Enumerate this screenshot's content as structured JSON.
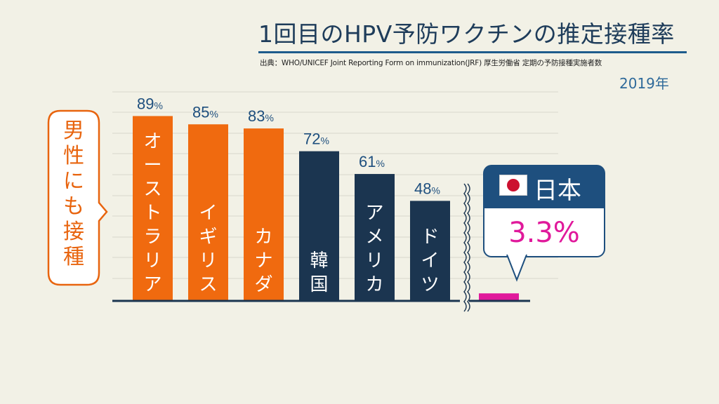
{
  "title": "1回目のHPV予防ワクチンの推定接種率",
  "source": "出典：WHO/UNICEF Joint Reporting Form on immunization(JRF) 厚生労働省 定期の予防接種実施者数",
  "year": "2019年",
  "callout_left": [
    "男",
    "性",
    "に",
    "も",
    "接",
    "種"
  ],
  "japan": {
    "label": "日本",
    "value": "3.3%",
    "flag_icon": "japan-flag-icon"
  },
  "colors": {
    "orange": "#f06a0f",
    "navy": "#1b3550",
    "pink": "#e0199b",
    "accent_blue": "#1e4f7e"
  },
  "chart_data": {
    "type": "bar",
    "categories": [
      "オーストラリア",
      "イギリス",
      "カナダ",
      "韓国",
      "アメリカ",
      "ドイツ",
      "日本"
    ],
    "values": [
      89,
      85,
      83,
      72,
      61,
      48,
      3.3
    ],
    "value_labels": [
      "89",
      "85",
      "83",
      "72",
      "61",
      "48",
      ""
    ],
    "unit": "%",
    "bar_colors": [
      "#f06a0f",
      "#f06a0f",
      "#f06a0f",
      "#1b3550",
      "#1b3550",
      "#1b3550",
      "#e0199b"
    ],
    "axis_break_after_index": 5,
    "grid": true
  }
}
